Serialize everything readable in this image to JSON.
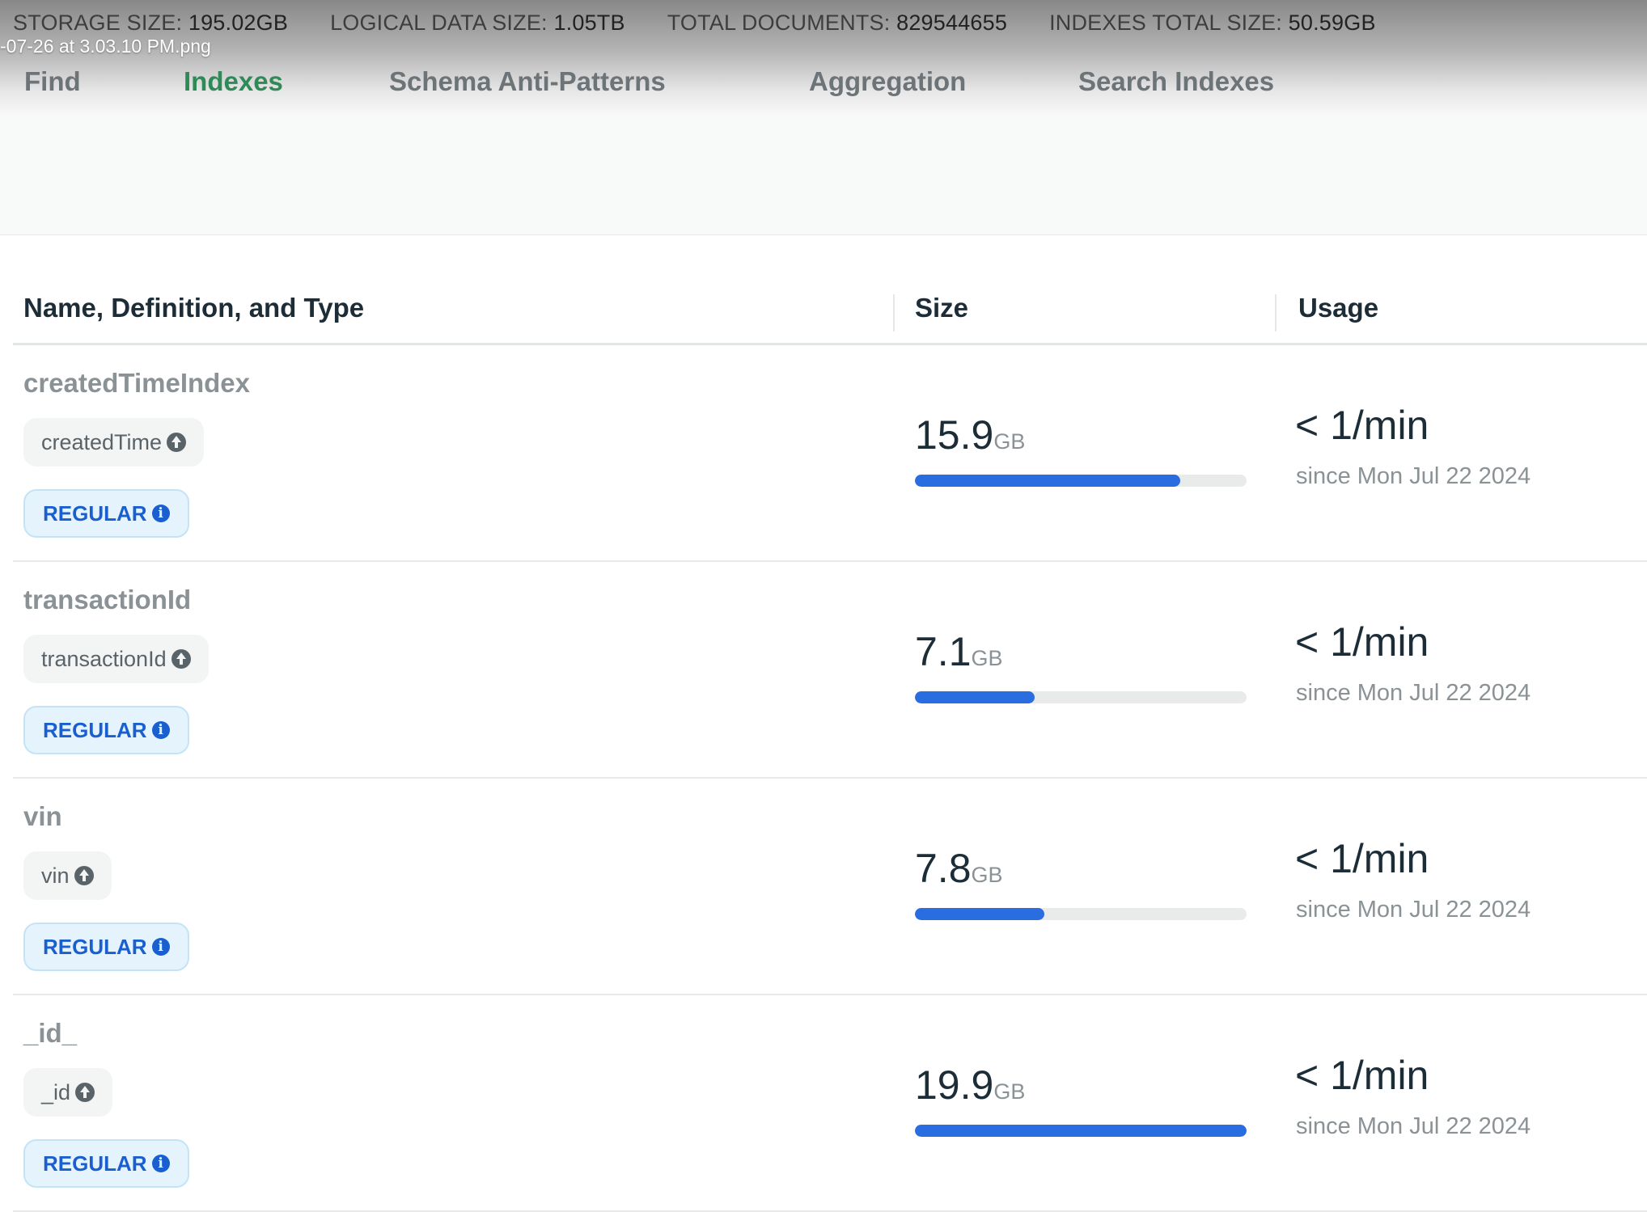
{
  "stats": [
    {
      "label": "STORAGE SIZE:",
      "value": "195.02GB"
    },
    {
      "label": "LOGICAL DATA SIZE:",
      "value": "1.05TB"
    },
    {
      "label": "TOTAL DOCUMENTS:",
      "value": "829544655"
    },
    {
      "label": "INDEXES TOTAL SIZE:",
      "value": "50.59GB"
    }
  ],
  "filename": "-07-26 at 3.03.10 PM.png",
  "tabs": [
    {
      "label": "Find",
      "active": false
    },
    {
      "label": "Indexes",
      "active": true
    },
    {
      "label": "Schema Anti-Patterns",
      "active": false
    },
    {
      "label": "Aggregation",
      "active": false
    },
    {
      "label": "Search Indexes",
      "active": false
    }
  ],
  "table": {
    "headers": [
      "Name, Definition, and Type",
      "Size",
      "Usage"
    ],
    "rows": [
      {
        "name": "createdTimeIndex",
        "field": "createdTime",
        "type": "REGULAR",
        "size": "15.9",
        "unit": "GB",
        "size_fraction": 0.8,
        "usage": "< 1/min",
        "since": "since Mon Jul 22 2024"
      },
      {
        "name": "transactionId",
        "field": "transactionId",
        "type": "REGULAR",
        "size": "7.1",
        "unit": "GB",
        "size_fraction": 0.36,
        "usage": "< 1/min",
        "since": "since Mon Jul 22 2024"
      },
      {
        "name": "vin",
        "field": "vin",
        "type": "REGULAR",
        "size": "7.8",
        "unit": "GB",
        "size_fraction": 0.39,
        "usage": "< 1/min",
        "since": "since Mon Jul 22 2024"
      },
      {
        "name": "_id_",
        "field": "_id",
        "type": "REGULAR",
        "size": "19.9",
        "unit": "GB",
        "size_fraction": 1.0,
        "usage": "< 1/min",
        "since": "since Mon Jul 22 2024"
      }
    ]
  }
}
